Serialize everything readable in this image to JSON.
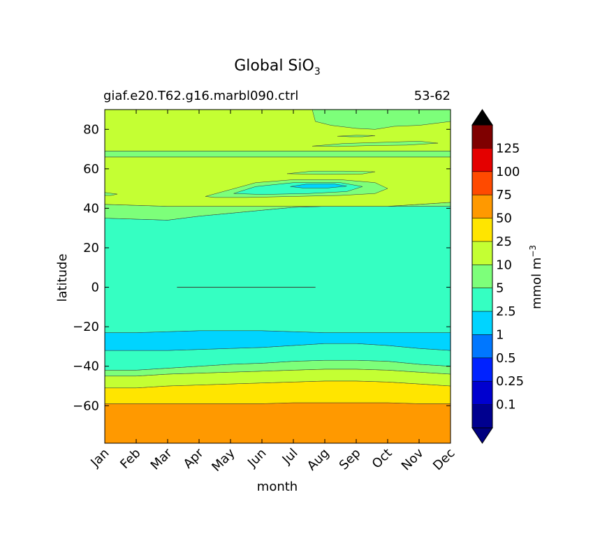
{
  "chart_data": {
    "type": "contourf",
    "title": "Global SiO",
    "title_subscript": "3",
    "subtitle_left": "giaf.e20.T62.g16.marbl090.ctrl",
    "subtitle_right": "53-62",
    "xlabel": "month",
    "ylabel": "latitude",
    "x_categories": [
      "Jan",
      "Feb",
      "Mar",
      "Apr",
      "May",
      "Jun",
      "Jul",
      "Aug",
      "Sep",
      "Oct",
      "Nov",
      "Dec"
    ],
    "xlim": [
      1,
      12
    ],
    "ylim": [
      -79,
      90
    ],
    "y_ticks": [
      -60,
      -40,
      -20,
      0,
      20,
      40,
      60,
      80
    ],
    "y_tick_labels": [
      "−60",
      "−40",
      "−20",
      "0",
      "20",
      "40",
      "60",
      "80"
    ],
    "colorbar": {
      "label": "mmol m",
      "label_superscript": "−3",
      "levels": [
        0.1,
        0.25,
        0.5,
        1,
        2.5,
        5,
        10,
        25,
        50,
        75,
        100,
        125
      ],
      "level_labels": [
        "0.1",
        "0.25",
        "0.5",
        "1",
        "2.5",
        "5",
        "10",
        "25",
        "50",
        "75",
        "100",
        "125"
      ],
      "colors": [
        "#00008f",
        "#0000cf",
        "#0022ff",
        "#0077ff",
        "#00d4ff",
        "#35ffc2",
        "#7dff7a",
        "#c4ff33",
        "#ffe500",
        "#ff9900",
        "#ff4a00",
        "#e40000",
        "#7f0000"
      ],
      "under_color": "#00007f",
      "over_color": "#000000",
      "extend": "both"
    },
    "bands": [
      {
        "level_index": 9,
        "lower": [
          -79,
          -79,
          -79,
          -79,
          -79,
          -79,
          -79,
          -79,
          -79,
          -79,
          -79,
          -79
        ],
        "upper": [
          -59,
          -59,
          -59,
          -59,
          -59,
          -59,
          -58.5,
          -58.5,
          -58.5,
          -58.5,
          -59,
          -59
        ]
      },
      {
        "level_index": 8,
        "lower": [
          -59,
          -59,
          -59,
          -59,
          -59,
          -59,
          -58.5,
          -58.5,
          -58.5,
          -58.5,
          -59,
          -59
        ],
        "upper": [
          -51,
          -51,
          -50,
          -49.5,
          -49,
          -48.5,
          -48,
          -47.5,
          -47.5,
          -48,
          -49,
          -50
        ]
      },
      {
        "level_index": 7,
        "lower": [
          -51,
          -51,
          -50,
          -49.5,
          -49,
          -48.5,
          -48,
          -47.5,
          -47.5,
          -48,
          -49,
          -50
        ],
        "upper": [
          -45,
          -45,
          -44,
          -43.5,
          -43,
          -42.5,
          -42,
          -41.5,
          -41.5,
          -42,
          -43,
          -44
        ]
      },
      {
        "level_index": 6,
        "lower": [
          -45,
          -45,
          -44,
          -43.5,
          -43,
          -42.5,
          -42,
          -41.5,
          -41.5,
          -42,
          -43,
          -44
        ],
        "upper": [
          -42,
          -42,
          -41,
          -40,
          -39,
          -38.5,
          -37.5,
          -37,
          -37,
          -37.5,
          -39,
          -40
        ]
      },
      {
        "level_index": 5,
        "lower": [
          -42,
          -42,
          -41,
          -40,
          -39,
          -38.5,
          -37.5,
          -37,
          -37,
          -37.5,
          -39,
          -40
        ],
        "upper": [
          -32,
          -32,
          -32,
          -31.5,
          -31,
          -30.5,
          -29.5,
          -28.5,
          -28.5,
          -29.5,
          -31,
          -32
        ]
      },
      {
        "level_index": 4,
        "lower": [
          -32,
          -32,
          -32,
          -31.5,
          -31,
          -30.5,
          -29.5,
          -28.5,
          -28.5,
          -29.5,
          -31,
          -32
        ],
        "upper": [
          -23,
          -23,
          -22.5,
          -22,
          -22,
          -22,
          -22.5,
          -23,
          -23,
          -23,
          -23,
          -23
        ]
      },
      {
        "level_index": 5,
        "lower": [
          -23,
          -23,
          -22.5,
          -22,
          -22,
          -22,
          -22.5,
          -23,
          -23,
          -23,
          -23,
          -23
        ],
        "upper": [
          35,
          34.5,
          34,
          36,
          37.5,
          39,
          40.5,
          41,
          41,
          41,
          41,
          41
        ]
      },
      {
        "level_index": 6,
        "lower": [
          35,
          34.5,
          34,
          36,
          37.5,
          39,
          40.5,
          41,
          41,
          41,
          41,
          41
        ],
        "upper": [
          42,
          41.5,
          41,
          41,
          41,
          41,
          41,
          41,
          41,
          41,
          42,
          43
        ]
      },
      {
        "level_index": 7,
        "lower": [
          42,
          41.5,
          41,
          41,
          41,
          41,
          41,
          41,
          41,
          41,
          42,
          43
        ],
        "upper": [
          66,
          66,
          66,
          66,
          66,
          66,
          66,
          66,
          66,
          66,
          66,
          66
        ]
      },
      {
        "level_index": 6,
        "lower": [
          66,
          66,
          66,
          66,
          66,
          66,
          66,
          66,
          66,
          66,
          66,
          66
        ],
        "upper": [
          69,
          69,
          69,
          69,
          69,
          69,
          69,
          69,
          69,
          69,
          69,
          69
        ]
      },
      {
        "level_index": 7,
        "lower": [
          69,
          69,
          69,
          69,
          69,
          69,
          69,
          69,
          69,
          69,
          69,
          69
        ],
        "upper": [
          90,
          90,
          90,
          90,
          90,
          90,
          90,
          90,
          90,
          90,
          90,
          90
        ]
      }
    ],
    "patches": [
      {
        "level_index": 6,
        "points": [
          [
            4.2,
            46
          ],
          [
            5,
            49.5
          ],
          [
            5.8,
            53
          ],
          [
            7,
            54.5
          ],
          [
            8.5,
            54.5
          ],
          [
            9.6,
            53
          ],
          [
            10,
            50
          ],
          [
            9.6,
            47.5
          ],
          [
            8.5,
            46.5
          ],
          [
            7,
            46
          ],
          [
            5.5,
            45.5
          ],
          [
            4.5,
            45.5
          ]
        ]
      },
      {
        "level_index": 5,
        "points": [
          [
            5.1,
            47.5
          ],
          [
            5.8,
            51
          ],
          [
            7,
            53
          ],
          [
            8.5,
            53
          ],
          [
            9.2,
            51
          ],
          [
            8.7,
            48.5
          ],
          [
            7.5,
            47.5
          ],
          [
            6,
            47
          ]
        ]
      },
      {
        "level_index": 4,
        "points": [
          [
            6.9,
            51
          ],
          [
            7.4,
            52.2
          ],
          [
            8.3,
            52.3
          ],
          [
            8.7,
            51.2
          ],
          [
            8.1,
            50.3
          ],
          [
            7.3,
            50.3
          ]
        ]
      },
      {
        "level_index": 6,
        "points": [
          [
            6.8,
            57.5
          ],
          [
            7.6,
            58.8
          ],
          [
            8.6,
            58.8
          ],
          [
            9.6,
            58.5
          ],
          [
            9.2,
            57.4
          ],
          [
            8,
            57.2
          ]
        ]
      },
      {
        "level_index": 6,
        "points": [
          [
            7.6,
            90
          ],
          [
            12,
            90
          ],
          [
            12,
            84
          ],
          [
            11,
            82
          ],
          [
            10.2,
            81.5
          ],
          [
            9.6,
            80
          ],
          [
            9,
            80.5
          ],
          [
            8.2,
            82
          ],
          [
            7.7,
            84
          ]
        ]
      },
      {
        "level_index": 6,
        "points": [
          [
            7.6,
            71.5
          ],
          [
            8.6,
            72.8
          ],
          [
            10,
            73.5
          ],
          [
            11,
            74
          ],
          [
            11.6,
            73
          ],
          [
            10.6,
            72
          ],
          [
            9.5,
            71.8
          ],
          [
            8.4,
            71.3
          ]
        ]
      },
      {
        "level_index": 6,
        "points": [
          [
            8.4,
            76.5
          ],
          [
            9,
            77
          ],
          [
            9.6,
            76.8
          ],
          [
            9.2,
            76.2
          ],
          [
            8.8,
            76.2
          ]
        ]
      },
      {
        "level_index": 6,
        "points": [
          [
            1,
            48
          ],
          [
            1.4,
            47.2
          ],
          [
            1.2,
            46.5
          ],
          [
            1,
            46.5
          ]
        ]
      },
      {
        "level_index": 7,
        "points": [
          [
            3.3,
            0.1
          ],
          [
            7.7,
            0.1
          ],
          [
            7.7,
            -0.1
          ],
          [
            3.3,
            -0.1
          ]
        ]
      }
    ]
  }
}
